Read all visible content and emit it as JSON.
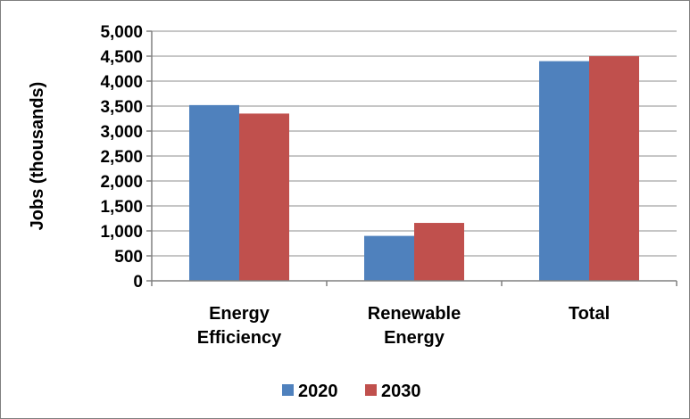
{
  "chart_data": {
    "type": "bar",
    "categories": [
      [
        "Energy",
        "Efficiency"
      ],
      [
        "Renewable",
        "Energy"
      ],
      [
        "Total"
      ]
    ],
    "series": [
      {
        "name": "2020",
        "values": [
          3520,
          900,
          4400
        ],
        "color": "#4f81bd"
      },
      {
        "name": "2030",
        "values": [
          3350,
          1160,
          4500
        ],
        "color": "#c0504d"
      }
    ],
    "ylabel": "Jobs (thousands)",
    "ylim": [
      0,
      5000
    ],
    "yticks": [
      {
        "value": 0,
        "label": "0"
      },
      {
        "value": 500,
        "label": "500"
      },
      {
        "value": 1000,
        "label": "1,000"
      },
      {
        "value": 1500,
        "label": "1,500"
      },
      {
        "value": 2000,
        "label": "2,000"
      },
      {
        "value": 2500,
        "label": "2,500"
      },
      {
        "value": 3000,
        "label": "3,000"
      },
      {
        "value": 3500,
        "label": "3,500"
      },
      {
        "value": 4000,
        "label": "4,000"
      },
      {
        "value": 4500,
        "label": "4,500"
      },
      {
        "value": 5000,
        "label": "5,000"
      }
    ],
    "grid": true,
    "legend": "bottom"
  }
}
